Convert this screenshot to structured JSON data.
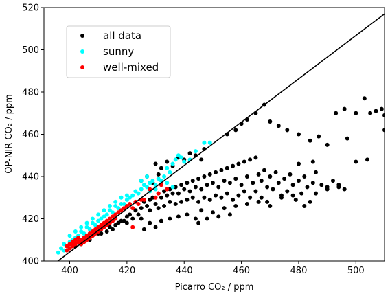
{
  "chart_data": {
    "type": "scatter",
    "xlabel": "Picarro CO₂ / ppm",
    "ylabel": "OP-NIR CO₂ / ppm",
    "xlim": [
      391,
      510
    ],
    "ylim": [
      400,
      520
    ],
    "xticks": [
      400,
      420,
      440,
      460,
      480,
      500
    ],
    "yticks": [
      400,
      420,
      440,
      460,
      480,
      500,
      520
    ],
    "grid": false,
    "legend_position": "upper-left",
    "reference_line": {
      "type": "one-to-one",
      "color": "#000000",
      "from": [
        391,
        395
      ],
      "to": [
        510,
        517
      ]
    },
    "series": [
      {
        "name": "all data",
        "color": "#000000",
        "points": [
          [
            400,
            406
          ],
          [
            402,
            407
          ],
          [
            404,
            408
          ],
          [
            405,
            410
          ],
          [
            407,
            410
          ],
          [
            408,
            412
          ],
          [
            410,
            413
          ],
          [
            411,
            413
          ],
          [
            413,
            414
          ],
          [
            414,
            416
          ],
          [
            415,
            415
          ],
          [
            416,
            417
          ],
          [
            417,
            418
          ],
          [
            418,
            419
          ],
          [
            419,
            419
          ],
          [
            420,
            421
          ],
          [
            420,
            418
          ],
          [
            421,
            422
          ],
          [
            422,
            420
          ],
          [
            423,
            424
          ],
          [
            424,
            422
          ],
          [
            425,
            425
          ],
          [
            425,
            420
          ],
          [
            426,
            428
          ],
          [
            427,
            426
          ],
          [
            428,
            429
          ],
          [
            428,
            424
          ],
          [
            429,
            430
          ],
          [
            430,
            427
          ],
          [
            431,
            432
          ],
          [
            431,
            425
          ],
          [
            432,
            430
          ],
          [
            433,
            433
          ],
          [
            433,
            426
          ],
          [
            434,
            431
          ],
          [
            435,
            434
          ],
          [
            435,
            428
          ],
          [
            436,
            432
          ],
          [
            437,
            435
          ],
          [
            437,
            427
          ],
          [
            438,
            432
          ],
          [
            439,
            436
          ],
          [
            439,
            428
          ],
          [
            440,
            434
          ],
          [
            441,
            437
          ],
          [
            441,
            429
          ],
          [
            442,
            433
          ],
          [
            443,
            438
          ],
          [
            443,
            430
          ],
          [
            444,
            435
          ],
          [
            445,
            439
          ],
          [
            445,
            428
          ],
          [
            446,
            434
          ],
          [
            447,
            440
          ],
          [
            447,
            430
          ],
          [
            448,
            436
          ],
          [
            449,
            441
          ],
          [
            449,
            429
          ],
          [
            450,
            437
          ],
          [
            451,
            442
          ],
          [
            451,
            431
          ],
          [
            452,
            435
          ],
          [
            453,
            443
          ],
          [
            453,
            430
          ],
          [
            454,
            438
          ],
          [
            455,
            444
          ],
          [
            455,
            432
          ],
          [
            456,
            437
          ],
          [
            457,
            445
          ],
          [
            457,
            429
          ],
          [
            458,
            439
          ],
          [
            459,
            446
          ],
          [
            459,
            431
          ],
          [
            460,
            436
          ],
          [
            461,
            447
          ],
          [
            461,
            433
          ],
          [
            462,
            440
          ],
          [
            463,
            448
          ],
          [
            463,
            430
          ],
          [
            464,
            437
          ],
          [
            465,
            449
          ],
          [
            465,
            433
          ],
          [
            466,
            441
          ],
          [
            467,
            438
          ],
          [
            467,
            430
          ],
          [
            468,
            443
          ],
          [
            469,
            435
          ],
          [
            469,
            428
          ],
          [
            470,
            440
          ],
          [
            471,
            434
          ],
          [
            472,
            442
          ],
          [
            473,
            437
          ],
          [
            474,
            431
          ],
          [
            475,
            439
          ],
          [
            476,
            433
          ],
          [
            477,
            441
          ],
          [
            478,
            436
          ],
          [
            479,
            429
          ],
          [
            480,
            438
          ],
          [
            481,
            432
          ],
          [
            482,
            440
          ],
          [
            483,
            435
          ],
          [
            484,
            428
          ],
          [
            485,
            437
          ],
          [
            486,
            442
          ],
          [
            488,
            436
          ],
          [
            490,
            435
          ],
          [
            492,
            438
          ],
          [
            494,
            436
          ],
          [
            496,
            434
          ],
          [
            455,
            460
          ],
          [
            458,
            462
          ],
          [
            460,
            465
          ],
          [
            462,
            467
          ],
          [
            465,
            470
          ],
          [
            468,
            474
          ],
          [
            470,
            466
          ],
          [
            473,
            464
          ],
          [
            476,
            462
          ],
          [
            480,
            460
          ],
          [
            484,
            457
          ],
          [
            487,
            459
          ],
          [
            490,
            455
          ],
          [
            493,
            470
          ],
          [
            496,
            472
          ],
          [
            500,
            470
          ],
          [
            503,
            477
          ],
          [
            505,
            470
          ],
          [
            507,
            471
          ],
          [
            509,
            472
          ],
          [
            510,
            469
          ],
          [
            510,
            462
          ],
          [
            497,
            458
          ],
          [
            504,
            448
          ],
          [
            500,
            447
          ],
          [
            485,
            447
          ],
          [
            480,
            446
          ],
          [
            482,
            426
          ],
          [
            490,
            434
          ],
          [
            494,
            435
          ],
          [
            486,
            432
          ],
          [
            430,
            446
          ],
          [
            432,
            444
          ],
          [
            434,
            447
          ],
          [
            436,
            445
          ],
          [
            438,
            449
          ],
          [
            440,
            448
          ],
          [
            442,
            451
          ],
          [
            444,
            450
          ],
          [
            446,
            448
          ],
          [
            447,
            453
          ],
          [
            425,
            438
          ],
          [
            427,
            440
          ],
          [
            429,
            437
          ],
          [
            431,
            441
          ],
          [
            426,
            415
          ],
          [
            428,
            418
          ],
          [
            430,
            416
          ],
          [
            432,
            419
          ],
          [
            435,
            420
          ],
          [
            438,
            421
          ],
          [
            441,
            422
          ],
          [
            444,
            420
          ],
          [
            446,
            424
          ],
          [
            450,
            423
          ],
          [
            454,
            425
          ],
          [
            458,
            426
          ],
          [
            462,
            427
          ],
          [
            466,
            428
          ],
          [
            470,
            426
          ],
          [
            474,
            430
          ],
          [
            478,
            431
          ],
          [
            445,
            418
          ],
          [
            448,
            420
          ],
          [
            452,
            421
          ],
          [
            456,
            422
          ]
        ]
      },
      {
        "name": "sunny",
        "color": "#00ffff",
        "points": [
          [
            396,
            404
          ],
          [
            397,
            406
          ],
          [
            398,
            405
          ],
          [
            398,
            408
          ],
          [
            399,
            407
          ],
          [
            400,
            409
          ],
          [
            400,
            412
          ],
          [
            401,
            410
          ],
          [
            402,
            411
          ],
          [
            402,
            414
          ],
          [
            403,
            412
          ],
          [
            404,
            414
          ],
          [
            404,
            416
          ],
          [
            405,
            413
          ],
          [
            406,
            416
          ],
          [
            406,
            418
          ],
          [
            407,
            415
          ],
          [
            408,
            418
          ],
          [
            408,
            420
          ],
          [
            409,
            417
          ],
          [
            410,
            419
          ],
          [
            410,
            422
          ],
          [
            411,
            420
          ],
          [
            412,
            421
          ],
          [
            412,
            424
          ],
          [
            413,
            422
          ],
          [
            414,
            424
          ],
          [
            414,
            426
          ],
          [
            415,
            423
          ],
          [
            416,
            426
          ],
          [
            416,
            428
          ],
          [
            417,
            425
          ],
          [
            418,
            427
          ],
          [
            418,
            430
          ],
          [
            419,
            427
          ],
          [
            420,
            429
          ],
          [
            420,
            431
          ],
          [
            421,
            430
          ],
          [
            422,
            431
          ],
          [
            423,
            433
          ],
          [
            424,
            432
          ],
          [
            425,
            434
          ],
          [
            426,
            436
          ],
          [
            427,
            435
          ],
          [
            428,
            437
          ],
          [
            429,
            438
          ],
          [
            430,
            436
          ],
          [
            431,
            439
          ],
          [
            432,
            438
          ],
          [
            433,
            440
          ],
          [
            434,
            444
          ],
          [
            435,
            442
          ],
          [
            436,
            446
          ],
          [
            437,
            448
          ],
          [
            438,
            450
          ],
          [
            439,
            449
          ],
          [
            440,
            447
          ],
          [
            442,
            448
          ],
          [
            444,
            452
          ],
          [
            447,
            456
          ],
          [
            449,
            456
          ],
          [
            425,
            438
          ],
          [
            427,
            440
          ],
          [
            428,
            433
          ],
          [
            430,
            434
          ],
          [
            432,
            436
          ],
          [
            434,
            437
          ],
          [
            436,
            435
          ]
        ]
      },
      {
        "name": "well-mixed",
        "color": "#ff0000",
        "points": [
          [
            399,
            405
          ],
          [
            399,
            407
          ],
          [
            400,
            406
          ],
          [
            400,
            408
          ],
          [
            401,
            407
          ],
          [
            401,
            409
          ],
          [
            402,
            408
          ],
          [
            402,
            410
          ],
          [
            403,
            409
          ],
          [
            403,
            411
          ],
          [
            404,
            410
          ],
          [
            404,
            408
          ],
          [
            405,
            411
          ],
          [
            405,
            409
          ],
          [
            406,
            412
          ],
          [
            406,
            410
          ],
          [
            407,
            413
          ],
          [
            407,
            411
          ],
          [
            408,
            414
          ],
          [
            408,
            412
          ],
          [
            409,
            415
          ],
          [
            409,
            413
          ],
          [
            410,
            416
          ],
          [
            410,
            414
          ],
          [
            411,
            417
          ],
          [
            411,
            415
          ],
          [
            412,
            418
          ],
          [
            412,
            416
          ],
          [
            413,
            419
          ],
          [
            413,
            417
          ],
          [
            414,
            420
          ],
          [
            414,
            418
          ],
          [
            415,
            421
          ],
          [
            415,
            419
          ],
          [
            416,
            422
          ],
          [
            416,
            420
          ],
          [
            417,
            423
          ],
          [
            418,
            424
          ],
          [
            419,
            425
          ],
          [
            420,
            426
          ],
          [
            421,
            427
          ],
          [
            422,
            425
          ],
          [
            423,
            428
          ],
          [
            424,
            427
          ],
          [
            425,
            429
          ],
          [
            422,
            416
          ],
          [
            426,
            429
          ],
          [
            428,
            434
          ],
          [
            430,
            430
          ],
          [
            431,
            432
          ],
          [
            432,
            436
          ],
          [
            434,
            434
          ]
        ]
      }
    ]
  },
  "legend": {
    "items": [
      {
        "label": "all data",
        "color": "#000000"
      },
      {
        "label": "sunny",
        "color": "#00ffff"
      },
      {
        "label": "well-mixed",
        "color": "#ff0000"
      }
    ]
  }
}
